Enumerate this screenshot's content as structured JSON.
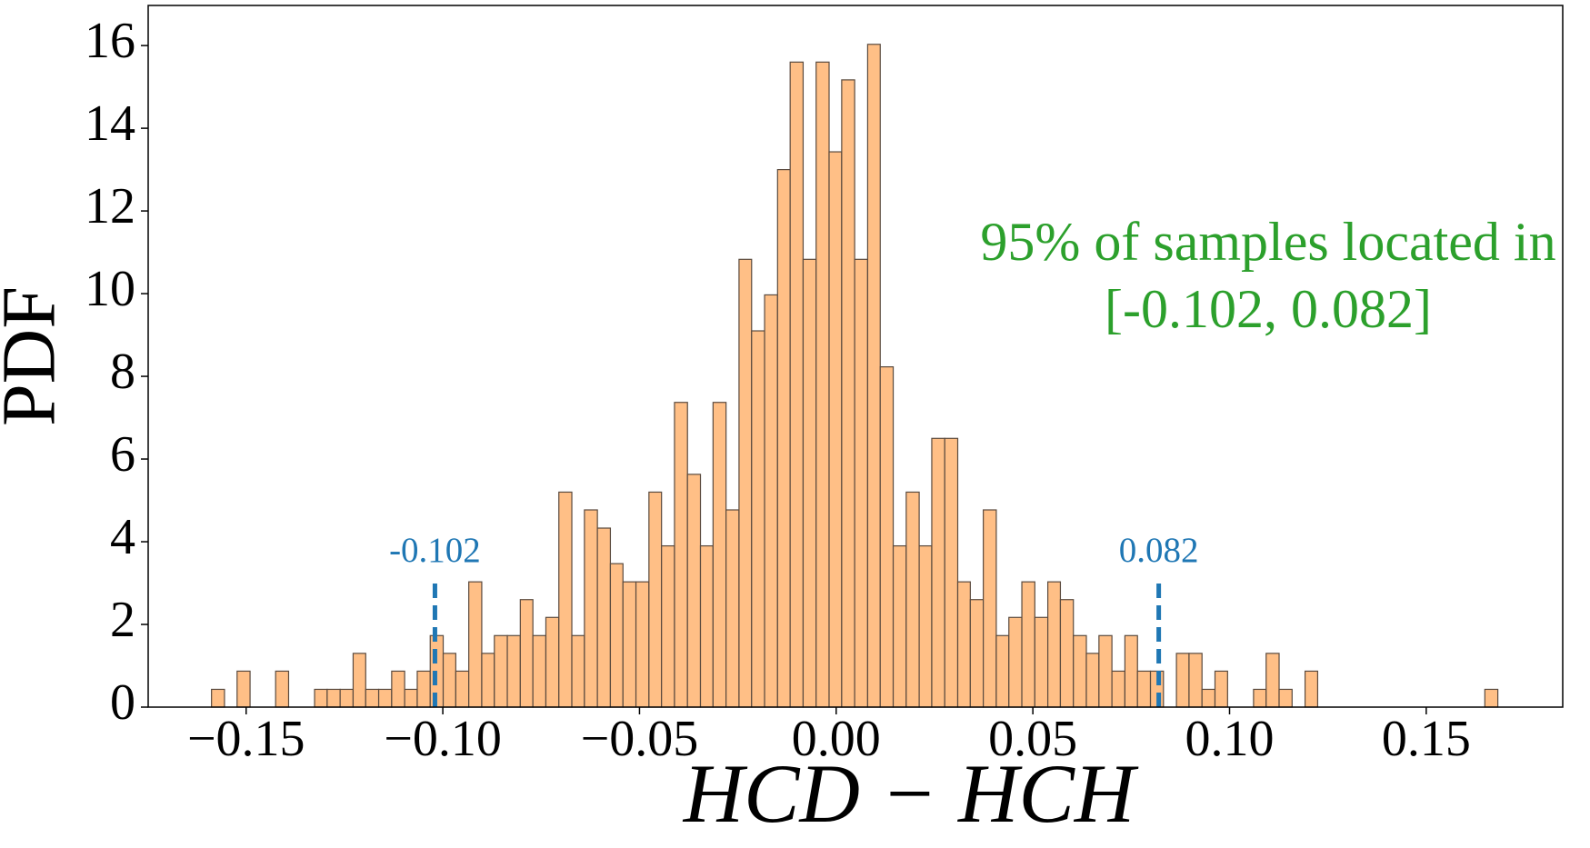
{
  "chart_data": {
    "type": "histogram",
    "xlabel": "HCD − HCH",
    "ylabel": "PDF",
    "bins": [
      -0.1588,
      -0.1555,
      -0.1523,
      -0.149,
      -0.1457,
      -0.1425,
      -0.1392,
      -0.1359,
      -0.1326,
      -0.1294,
      -0.1261,
      -0.1228,
      -0.1196,
      -0.1163,
      -0.113,
      -0.1097,
      -0.1065,
      -0.1032,
      -0.0999,
      -0.0967,
      -0.0934,
      -0.0901,
      -0.0869,
      -0.0836,
      -0.0803,
      -0.0771,
      -0.0738,
      -0.0705,
      -0.0672,
      -0.064,
      -0.0607,
      -0.0574,
      -0.0542,
      -0.0509,
      -0.0476,
      -0.0444,
      -0.0411,
      -0.0378,
      -0.0345,
      -0.0313,
      -0.028,
      -0.0247,
      -0.0215,
      -0.0182,
      -0.0149,
      -0.0117,
      -0.0084,
      -0.0051,
      -0.0018,
      0.0014,
      0.0047,
      0.008,
      0.0112,
      0.0145,
      0.0178,
      0.0211,
      0.0243,
      0.0276,
      0.0309,
      0.0341,
      0.0374,
      0.0407,
      0.0439,
      0.0472,
      0.0505,
      0.0538,
      0.057,
      0.0603,
      0.0636,
      0.0668,
      0.0701,
      0.0734,
      0.0766,
      0.0799,
      0.0832,
      0.0865,
      0.0897,
      0.093,
      0.0963,
      0.0995,
      0.1028,
      0.1061,
      0.1093,
      0.1126,
      0.1159,
      0.1192,
      0.1224,
      0.1257,
      0.129,
      0.1322,
      0.1355,
      0.1388,
      0.142,
      0.1453,
      0.1486,
      0.1519,
      0.1551,
      0.1584,
      0.1617,
      0.1649,
      0.1682
    ],
    "values": [
      0.43,
      0,
      0.87,
      0,
      0,
      0.87,
      0,
      0,
      0.43,
      0.43,
      0.43,
      1.3,
      0.43,
      0.43,
      0.87,
      0.43,
      0.87,
      1.73,
      1.3,
      0.87,
      3.03,
      1.3,
      1.73,
      1.73,
      2.6,
      1.73,
      2.17,
      5.2,
      1.73,
      4.77,
      4.33,
      3.47,
      3.03,
      3.03,
      5.2,
      3.9,
      7.37,
      5.63,
      3.9,
      7.37,
      4.77,
      10.83,
      9.1,
      9.97,
      13.0,
      15.6,
      10.83,
      15.6,
      13.43,
      15.17,
      10.83,
      16.03,
      8.23,
      3.9,
      5.2,
      3.9,
      6.5,
      6.5,
      3.03,
      2.6,
      4.77,
      1.73,
      2.17,
      3.03,
      2.17,
      3.03,
      2.6,
      1.73,
      1.3,
      1.73,
      0.87,
      1.73,
      0.87,
      0.87,
      0,
      1.3,
      1.3,
      0.43,
      0.87,
      0,
      0,
      0.43,
      1.3,
      0.43,
      0,
      0.87,
      0,
      0,
      0,
      0,
      0,
      0,
      0,
      0,
      0,
      0,
      0,
      0,
      0,
      0.43
    ],
    "color": "#ffbf86",
    "edgecolor": "#5a4a3e",
    "xlim": [
      -0.1749,
      0.1847
    ],
    "ylim": [
      0,
      16.97
    ],
    "xticks": [
      {
        "value": -0.15,
        "label": "−0.15"
      },
      {
        "value": -0.1,
        "label": "−0.10"
      },
      {
        "value": -0.05,
        "label": "−0.05"
      },
      {
        "value": 0,
        "label": "0.00"
      },
      {
        "value": 0.05,
        "label": "0.05"
      },
      {
        "value": 0.1,
        "label": "0.10"
      },
      {
        "value": 0.15,
        "label": "0.15"
      }
    ],
    "yticks": [
      0,
      2,
      4,
      6,
      8,
      10,
      12,
      14,
      16
    ],
    "vlines": [
      {
        "x": -0.102,
        "label": "-0.102"
      },
      {
        "x": 0.082,
        "label": "0.082"
      }
    ],
    "vline_top": 3.05,
    "vline_color": "#1f77b4",
    "annotation": [
      "95% of samples located in",
      "[-0.102, 0.082]"
    ],
    "annotation_color": "#2ca02c"
  }
}
